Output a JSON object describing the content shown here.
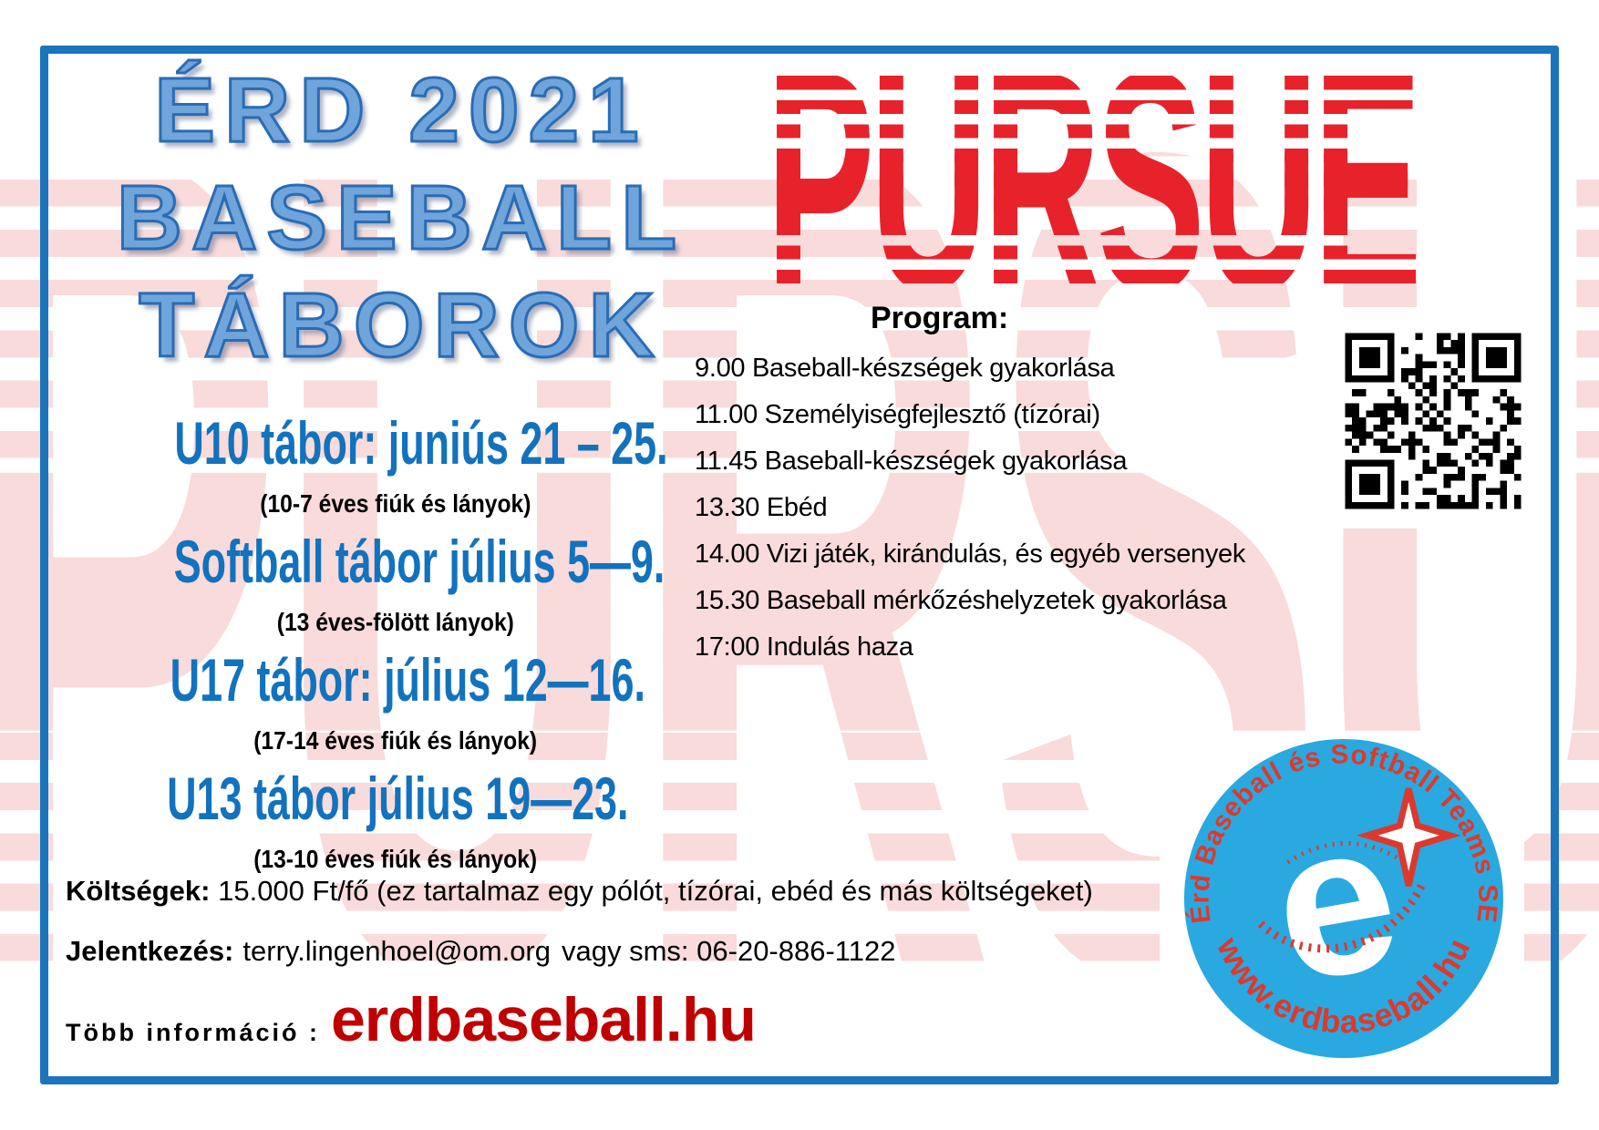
{
  "title": {
    "line1": "ÉRD 2021",
    "line2": "BASEBALL",
    "line3": "TÁBOROK"
  },
  "pursue_logo_text": "PURSUE",
  "watermark_text": "PURSUE",
  "program": {
    "heading": "Program:",
    "items": [
      "9.00  Baseball-készségek gyakorlása",
      "11.00 Személyiségfejlesztő (tízórai)",
      "11.45 Baseball-készségek gyakorlása",
      "13.30 Ebéd",
      "14.00 Vizi játék, kirándulás, és egyéb versenyek",
      "15.30 Baseball mérkőzéshelyzetek gyakorlása",
      "17:00 Indulás haza"
    ]
  },
  "camps": [
    {
      "title": "U10  tábor: juniús 21 – 25.",
      "subtitle": "(10-7 éves fiúk és lányok)"
    },
    {
      "title": "Softball tábor július  5—9.",
      "subtitle": "(13 éves-fölött lányok)"
    },
    {
      "title": "U17 tábor: július 12—16.",
      "subtitle": "(17-14 éves fiúk és lányok)"
    },
    {
      "title": "U13 tábor július  19—23.",
      "subtitle": "(13-10 éves fiúk és lányok)"
    }
  ],
  "costs": {
    "label": "Költségek:",
    "text": " 15.000 Ft/fő (ez tartalmaz egy pólót, tízórai, ebéd és más költségeket)"
  },
  "registration": {
    "label": "Jelentkezés:",
    "email": "terry.lingenhoel@om.org",
    "rest": "vagy sms: 06-20-886-1122"
  },
  "more_info": {
    "label": "Több információ :",
    "website": "erdbaseball.hu"
  },
  "club_logo": {
    "top_text": "Érd Baseball és Softball Teams SE",
    "bottom_text": "www.erdbaseball.hu",
    "letter": "e"
  },
  "colors": {
    "accent_blue": "#1B75BC",
    "title_fill": "#6FA5DB",
    "title_outline": "#2A6CB4",
    "camp_blue": "#1272BE",
    "pursue_red": "#E8222B",
    "watermark_pink": "#F8DBDA",
    "website_red": "#C00000",
    "logo_circle_blue": "#29A9E0",
    "logo_text_red": "#DC392E"
  }
}
